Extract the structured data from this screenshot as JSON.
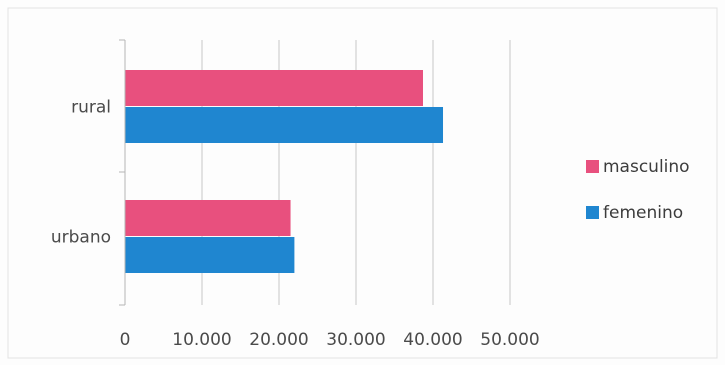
{
  "chart_data": {
    "type": "bar",
    "orientation": "horizontal",
    "categories": [
      "rural",
      "urbano"
    ],
    "series": [
      {
        "name": "masculino",
        "values": [
          38700,
          21500
        ],
        "color": "#e8507e"
      },
      {
        "name": "femenino",
        "values": [
          41300,
          22000
        ],
        "color": "#1f86d0"
      }
    ],
    "x_ticks": [
      "0",
      "10.000",
      "20.000",
      "30.000",
      "40.000",
      "50.000"
    ],
    "xlim": [
      0,
      50000
    ],
    "grid": "vertical",
    "legend_position": "right"
  }
}
